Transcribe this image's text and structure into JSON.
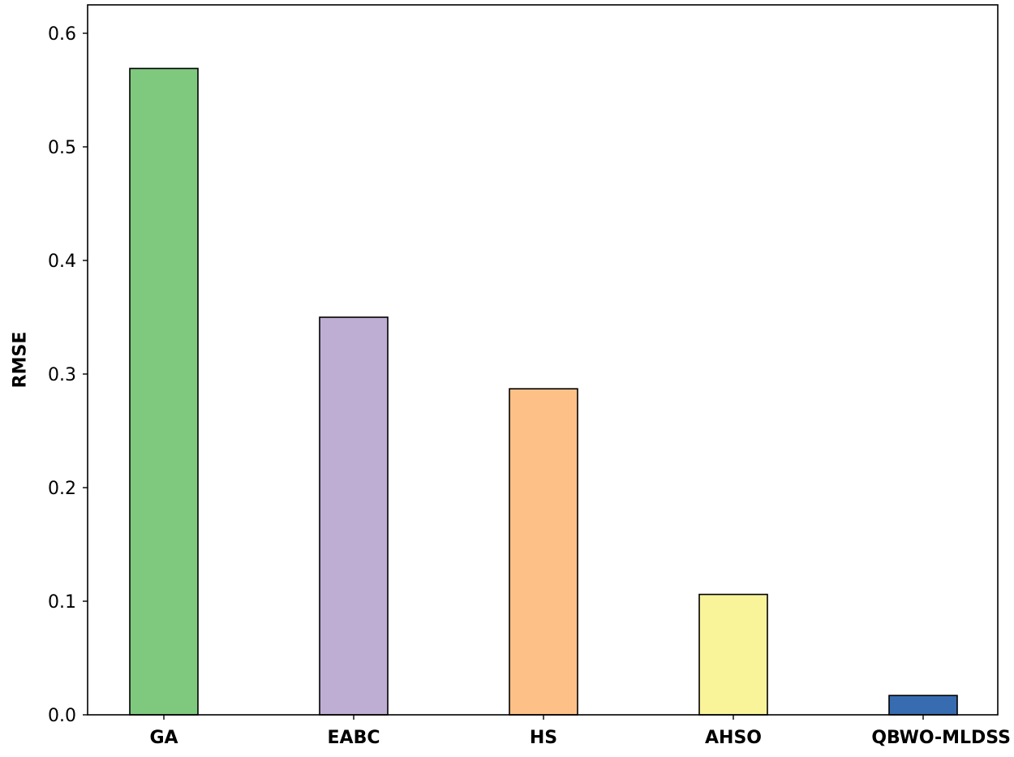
{
  "chart_data": {
    "type": "bar",
    "title": "",
    "xlabel": "",
    "ylabel": "RMSE",
    "categories": [
      "GA",
      "EABC",
      "HS",
      "AHSO",
      "QBWO-MLDSS"
    ],
    "values": [
      0.569,
      0.35,
      0.287,
      0.106,
      0.017
    ],
    "colors": [
      "#7fc97f",
      "#beaed4",
      "#fdc086",
      "#f9f39a",
      "#386cb0"
    ],
    "ylim": [
      0,
      0.625
    ],
    "yticks": [
      0.0,
      0.1,
      0.2,
      0.3,
      0.4,
      0.5,
      0.6
    ],
    "ytick_labels": [
      "0.0",
      "0.1",
      "0.2",
      "0.3",
      "0.4",
      "0.5",
      "0.6"
    ],
    "grid": false,
    "legend": "none"
  }
}
